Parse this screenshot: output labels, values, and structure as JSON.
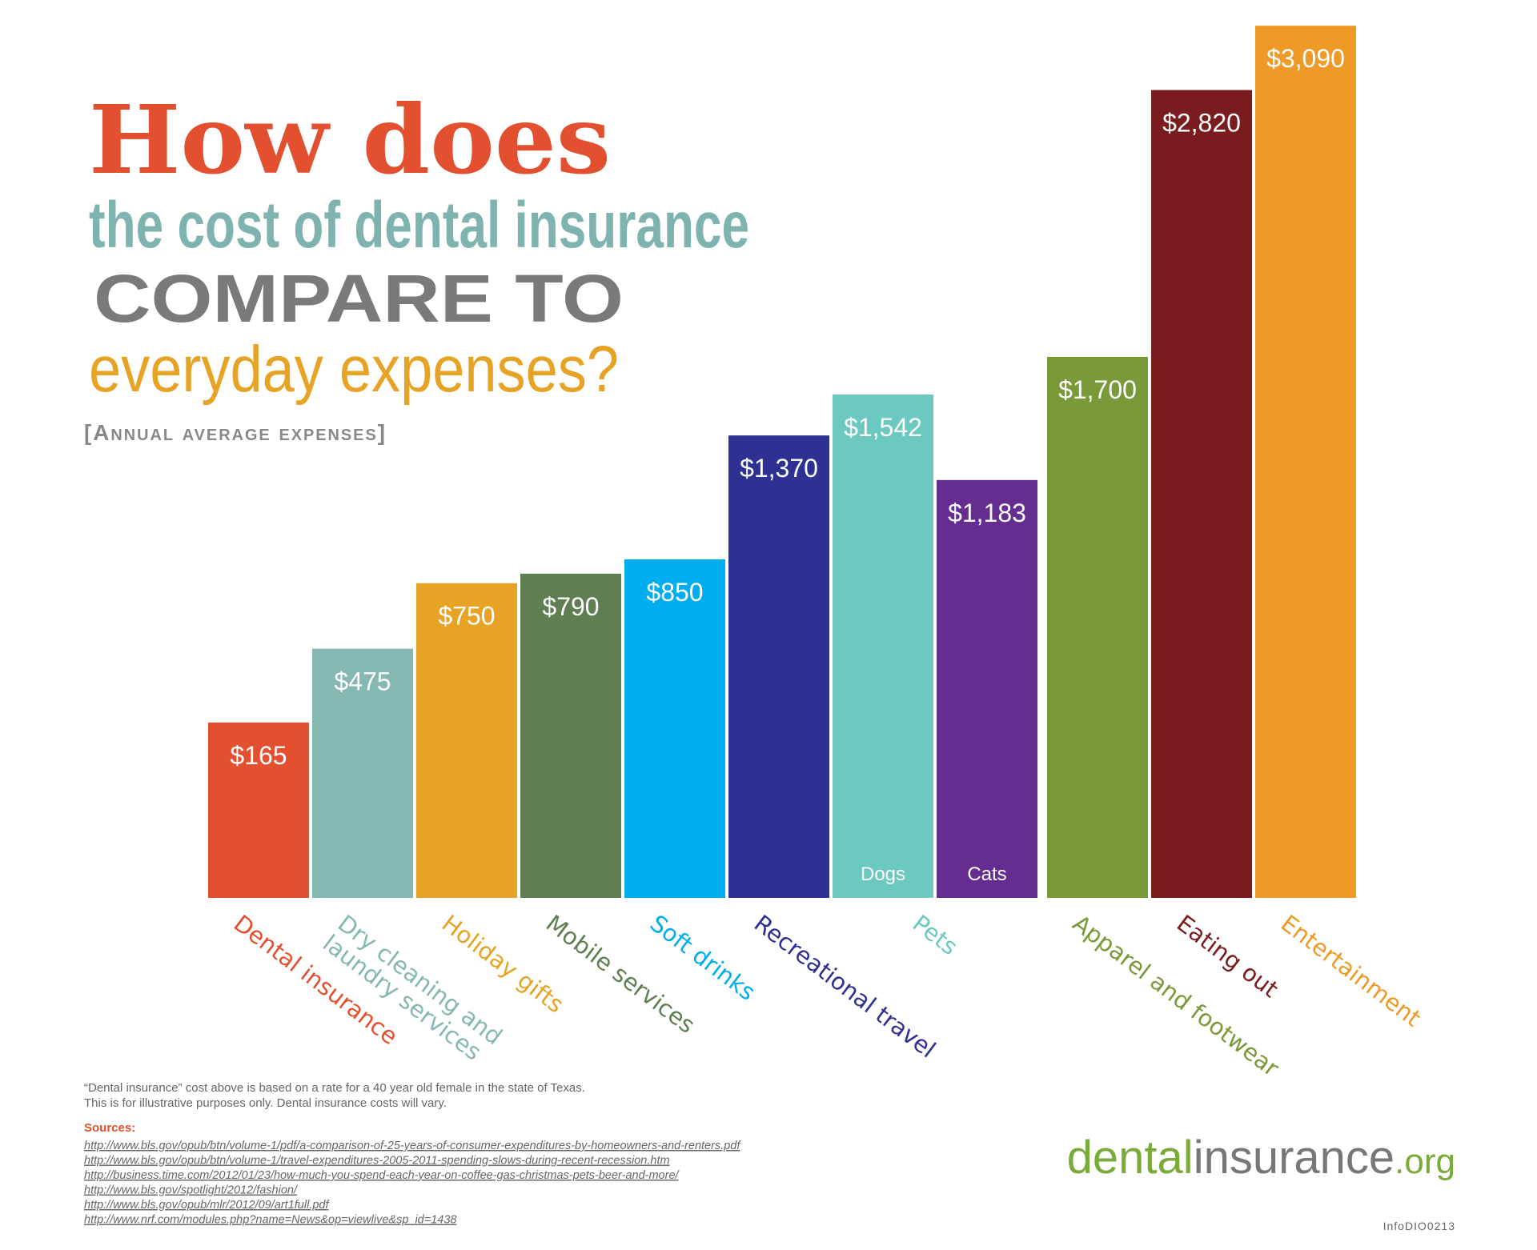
{
  "title": {
    "line1": "How does",
    "line2": "the cost of dental insurance",
    "line3": "COMPARE TO",
    "line4": "everyday expenses?",
    "subtitle": "[Annual average expenses]"
  },
  "chart_data": {
    "type": "bar",
    "categories": [
      "Dental insurance",
      "Dry cleaning and laundry services",
      "Holiday gifts",
      "Mobile services",
      "Soft drinks",
      "Recreational travel",
      "Dogs",
      "Cats",
      "Apparel and footwear",
      "Eating out",
      "Entertainment"
    ],
    "values": [
      165,
      475,
      750,
      790,
      850,
      1370,
      1542,
      1183,
      1700,
      2820,
      3090
    ],
    "value_labels": [
      "$165",
      "$475",
      "$750",
      "$790",
      "$850",
      "$1,370",
      "$1,542",
      "$1,183",
      "$1,700",
      "$2,820",
      "$3,090"
    ],
    "colors": [
      "#e2502f",
      "#86b8b3",
      "#e6a325",
      "#5f7f52",
      "#00aeef",
      "#2e3192",
      "#6cc9c0",
      "#662d91",
      "#7a9a3a",
      "#7a1c1e",
      "#ef9a26"
    ],
    "category_groups": [
      {
        "label": "Pets",
        "members": [
          6,
          7
        ]
      }
    ]
  },
  "notes": [
    "“Dental insurance” cost above is based on a rate for a 40 year old female in the state of Texas.",
    "This is for illustrative purposes only. Dental insurance costs will vary."
  ],
  "sources": {
    "heading": "Sources:",
    "links": [
      "http://www.bls.gov/opub/btn/volume-1/pdf/a-comparison-of-25-years-of-consumer-expenditures-by-homeowners-and-renters.pdf",
      "http://www.bls.gov/opub/btn/volume-1/travel-expenditures-2005-2011-spending-slows-during-recent-recession.htm",
      "http://business.time.com/2012/01/23/how-much-you-spend-each-year-on-coffee-gas-christmas-pets-beer-and-more/",
      "http://www.bls.gov/spotlight/2012/fashion/",
      "http://www.bls.gov/opub/mlr/2012/09/art1full.pdf",
      "http://www.nrf.com/modules.php?name=News&op=viewlive&sp_id=1438"
    ]
  },
  "logo": {
    "part1": "dental",
    "part2": "insurance",
    "part3": ".org"
  },
  "code": "InfoDIO0213"
}
